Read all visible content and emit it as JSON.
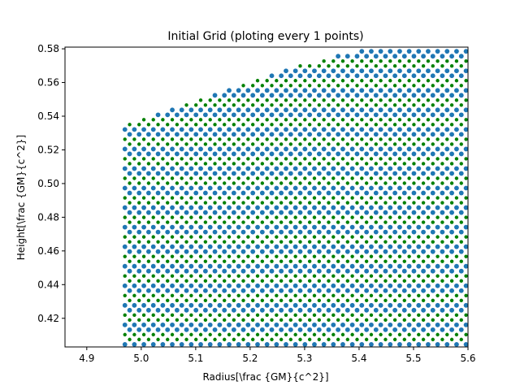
{
  "chart_data": {
    "type": "scatter",
    "title": "Initial Grid (ploting every 1 points)",
    "xlabel": "Radius[\\frac {GM}{c^2}]",
    "ylabel": "Height[\\frac {GM}{c^2}]",
    "xlim": [
      4.86,
      5.6
    ],
    "ylim": [
      0.403,
      0.581
    ],
    "x_ticks": [
      "4.9",
      "5.0",
      "5.1",
      "5.2",
      "5.3",
      "5.4",
      "5.5",
      "5.6"
    ],
    "x_tick_values": [
      4.9,
      5.0,
      5.1,
      5.2,
      5.3,
      5.4,
      5.5,
      5.6
    ],
    "y_ticks": [
      "0.42",
      "0.44",
      "0.46",
      "0.48",
      "0.50",
      "0.52",
      "0.54",
      "0.56",
      "0.58"
    ],
    "y_tick_values": [
      0.42,
      0.44,
      0.46,
      0.48,
      0.5,
      0.52,
      0.54,
      0.56,
      0.58
    ],
    "grid": false,
    "legend": "none",
    "series": [
      {
        "color": "#1f77b4",
        "marker": "circle-large"
      },
      {
        "color": "#008000",
        "marker": "circle-small"
      }
    ],
    "grid_structure": {
      "x_min": 4.97,
      "x_max": 5.6,
      "x_spacing": 0.0087,
      "y_spacing": 0.0058,
      "top_edge": {
        "x": [
          4.97,
          5.1,
          5.2,
          5.3,
          5.4,
          5.45,
          5.6
        ],
        "y": [
          0.536,
          0.55,
          0.561,
          0.571,
          0.579,
          0.581,
          0.581
        ]
      }
    }
  }
}
